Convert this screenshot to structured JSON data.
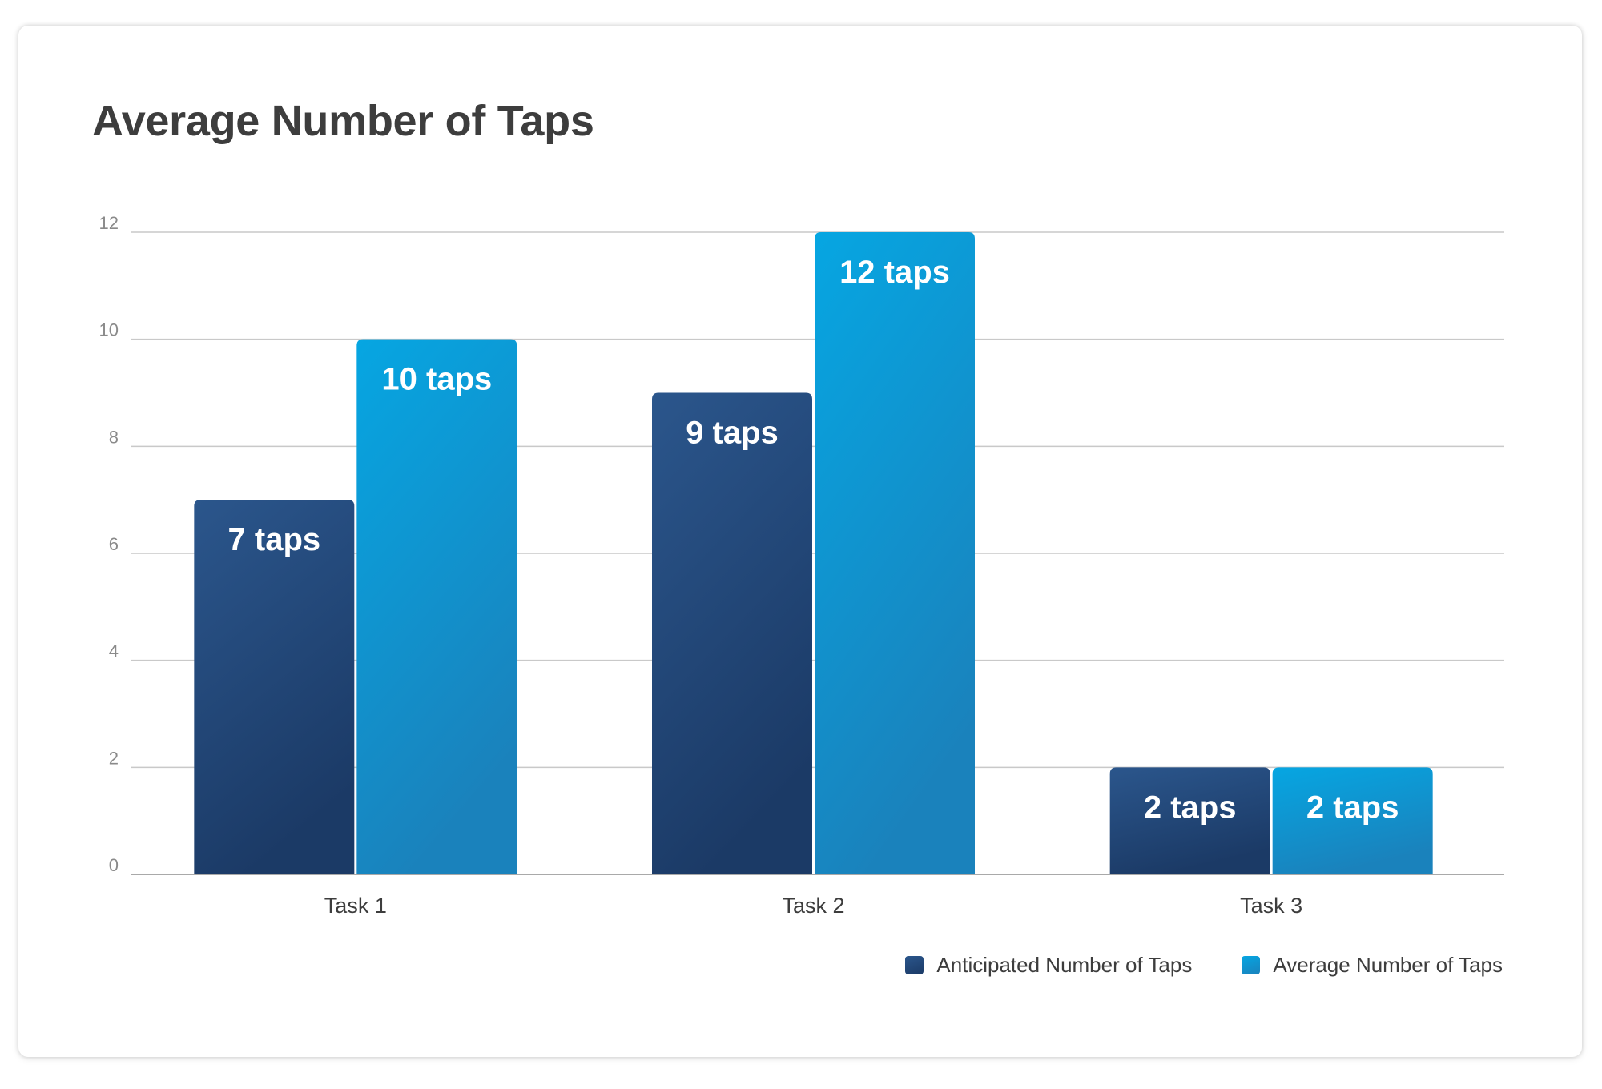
{
  "title": "Average Number of Taps",
  "legend": {
    "anticipated_label": "Anticipated Number of Taps",
    "average_label": "Average Number of Taps"
  },
  "colors": {
    "anticipated": "#1f3e6b",
    "anticipated_light": "#2a5387",
    "average": "#0aa2dc",
    "average_dark": "#1b83bd",
    "grid": "#c9c9c9",
    "axis_text": "#8a8a8a",
    "category_text": "#3d3d3d",
    "bar_label": "#ffffff"
  },
  "chart_data": {
    "type": "bar",
    "title": "Average Number of Taps",
    "categories": [
      "Task 1",
      "Task 2",
      "Task 3"
    ],
    "series": [
      {
        "name": "Anticipated Number of Taps",
        "values": [
          7,
          9,
          2
        ],
        "labels": [
          "7 taps",
          "9 taps",
          "2 taps"
        ]
      },
      {
        "name": "Average Number of Taps",
        "values": [
          10,
          12,
          2
        ],
        "labels": [
          "10 taps",
          "12 taps",
          "2 taps"
        ]
      }
    ],
    "ylim": [
      0,
      12
    ],
    "yticks": [
      0,
      2,
      4,
      6,
      8,
      10,
      12
    ],
    "xlabel": "",
    "ylabel": "",
    "grid": true,
    "legend_position": "bottom-right"
  }
}
